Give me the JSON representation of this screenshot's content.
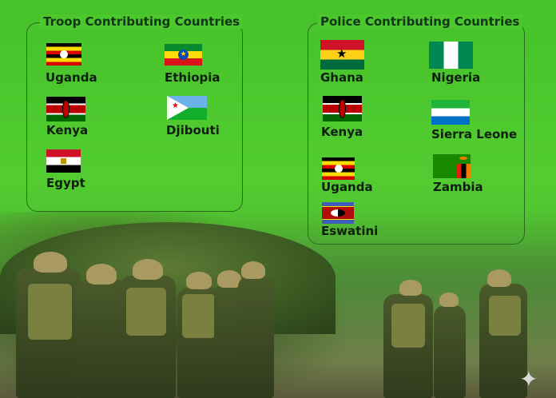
{
  "troop_section": {
    "title": "Troop Contributing Countries",
    "countries": [
      "Uganda",
      "Ethiopia",
      "Kenya",
      "Djibouti",
      "Egypt"
    ]
  },
  "police_section": {
    "title": "Police Contributing Countries",
    "countries": [
      "Ghana",
      "Nigeria",
      "Kenya",
      "Sierra Leone",
      "Uganda",
      "Zambia",
      "Eswatini"
    ]
  },
  "colors": {
    "background": "#4cc72d",
    "border": "#2b6a1e",
    "text": "#0e1e10"
  },
  "icons": {
    "watermark": "sparkle-icon"
  }
}
